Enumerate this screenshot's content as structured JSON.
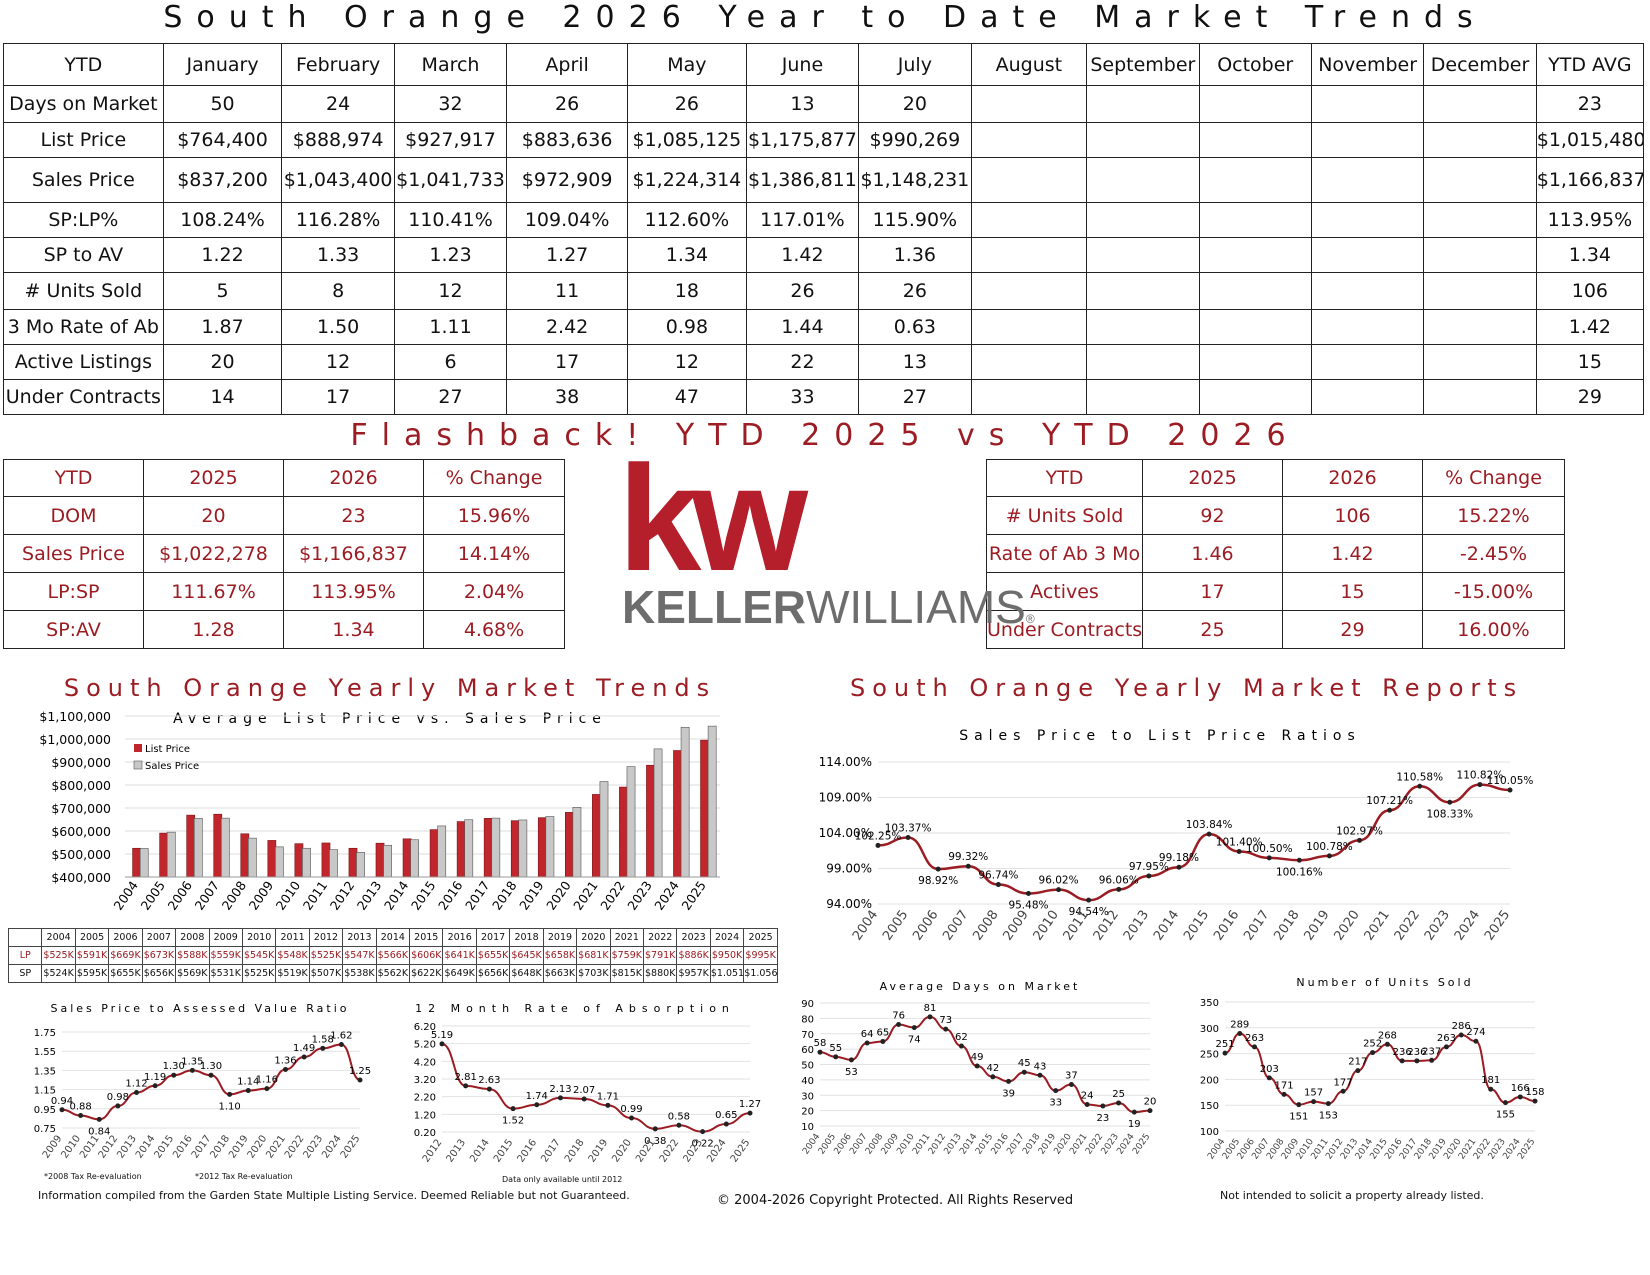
{
  "header": {
    "title": "South Orange 2026 Year to Date Market Trends"
  },
  "ytd_table": {
    "columns": [
      "YTD",
      "January",
      "February",
      "March",
      "April",
      "May",
      "June",
      "July",
      "August",
      "September",
      "October",
      "November",
      "December",
      "YTD AVG"
    ],
    "rows": [
      [
        "Days on Market",
        "50",
        "24",
        "32",
        "26",
        "26",
        "13",
        "20",
        "",
        "",
        "",
        "",
        "",
        "23"
      ],
      [
        "List Price",
        "$764,400",
        "$888,974",
        "$927,917",
        "$883,636",
        "$1,085,125",
        "$1,175,877",
        "$990,269",
        "",
        "",
        "",
        "",
        "",
        "$1,015,480"
      ],
      [
        "Sales Price",
        "$837,200",
        "$1,043,400",
        "$1,041,733",
        "$972,909",
        "$1,224,314",
        "$1,386,811",
        "$1,148,231",
        "",
        "",
        "",
        "",
        "",
        "$1,166,837"
      ],
      [
        "SP:LP%",
        "108.24%",
        "116.28%",
        "110.41%",
        "109.04%",
        "112.60%",
        "117.01%",
        "115.90%",
        "",
        "",
        "",
        "",
        "",
        "113.95%"
      ],
      [
        "SP to AV",
        "1.22",
        "1.33",
        "1.23",
        "1.27",
        "1.34",
        "1.42",
        "1.36",
        "",
        "",
        "",
        "",
        "",
        "1.34"
      ],
      [
        "# Units Sold",
        "5",
        "8",
        "12",
        "11",
        "18",
        "26",
        "26",
        "",
        "",
        "",
        "",
        "",
        "106"
      ],
      [
        "3 Mo Rate of Ab",
        "1.87",
        "1.50",
        "1.11",
        "2.42",
        "0.98",
        "1.44",
        "0.63",
        "",
        "",
        "",
        "",
        "",
        "1.42"
      ],
      [
        "Active Listings",
        "20",
        "12",
        "6",
        "17",
        "12",
        "22",
        "13",
        "",
        "",
        "",
        "",
        "",
        "15"
      ],
      [
        "Under Contracts",
        "14",
        "17",
        "27",
        "38",
        "47",
        "33",
        "27",
        "",
        "",
        "",
        "",
        "",
        "29"
      ]
    ]
  },
  "flashback": {
    "title": "Flashback!  YTD 2025 vs YTD 2026",
    "left": {
      "header": [
        "YTD",
        "2025",
        "2026",
        "% Change"
      ],
      "rows": [
        [
          "DOM",
          "20",
          "23",
          "15.96%"
        ],
        [
          "Sales Price",
          "$1,022,278",
          "$1,166,837",
          "14.14%"
        ],
        [
          "LP:SP",
          "111.67%",
          "113.95%",
          "2.04%"
        ],
        [
          "SP:AV",
          "1.28",
          "1.34",
          "4.68%"
        ]
      ]
    },
    "right": {
      "header": [
        "YTD",
        "2025",
        "2026",
        "% Change"
      ],
      "rows": [
        [
          "# Units Sold",
          "92",
          "106",
          "15.22%"
        ],
        [
          "Rate of Ab 3 Mo",
          "1.46",
          "1.42",
          "-2.45%"
        ],
        [
          "Actives",
          "17",
          "15",
          "-15.00%"
        ],
        [
          "Under Contracts",
          "25",
          "29",
          "16.00%"
        ]
      ]
    }
  },
  "logo": {
    "mark": "kw",
    "name_a": "KELLER",
    "name_b": "WILLIAMS",
    "reg": "®"
  },
  "sections": {
    "trends": "South Orange Yearly Market Trends",
    "reports": "South Orange Yearly Market Reports"
  },
  "colors": {
    "accent": "#9b1c22",
    "list_bar": "#c0262c",
    "sales_bar": "#c8c8c8",
    "line": "#9b1c22"
  },
  "price_table": {
    "years": [
      "2004",
      "2005",
      "2006",
      "2007",
      "2008",
      "2009",
      "2010",
      "2011",
      "2012",
      "2013",
      "2014",
      "2015",
      "2016",
      "2017",
      "2018",
      "2019",
      "2020",
      "2021",
      "2022",
      "2023",
      "2024",
      "2025"
    ],
    "lp_label": "LP",
    "sp_label": "SP",
    "lp": [
      "$525K",
      "$591K",
      "$669K",
      "$673K",
      "$588K",
      "$559K",
      "$545K",
      "$548K",
      "$525K",
      "$547K",
      "$566K",
      "$606K",
      "$641K",
      "$655K",
      "$645K",
      "$658K",
      "$681K",
      "$759K",
      "$791K",
      "$886K",
      "$950K",
      "$995K"
    ],
    "sp": [
      "$524K",
      "$595K",
      "$655K",
      "$656K",
      "$569K",
      "$531K",
      "$525K",
      "$519K",
      "$507K",
      "$538K",
      "$562K",
      "$622K",
      "$649K",
      "$656K",
      "$648K",
      "$663K",
      "$703K",
      "$815K",
      "$880K",
      "$957K",
      "$1.051M",
      "$1.056"
    ]
  },
  "footer": {
    "note1": "*2008 Tax Re-evaluation",
    "note2": "*2012 Tax Re-evaluation",
    "note3": "Data only available until 2012",
    "left": "Information compiled from the Garden State Multiple Listing Service.  Deemed Reliable but not Guaranteed.",
    "center": "© 2004-2026 Copyright Protected.  All Rights Reserved",
    "right": "Not intended to solicit a property already listed."
  },
  "chart_data": [
    {
      "id": "avg-price",
      "type": "bar",
      "title": "Average List Price vs. Sales Price",
      "categories": [
        "2004",
        "2005",
        "2006",
        "2007",
        "2008",
        "2009",
        "2010",
        "2011",
        "2012",
        "2013",
        "2014",
        "2015",
        "2016",
        "2017",
        "2018",
        "2019",
        "2020",
        "2021",
        "2022",
        "2023",
        "2024",
        "2025"
      ],
      "series": [
        {
          "name": "List Price",
          "values": [
            525,
            591,
            669,
            673,
            588,
            559,
            545,
            548,
            525,
            547,
            566,
            606,
            641,
            655,
            645,
            658,
            681,
            759,
            791,
            886,
            950,
            995
          ]
        },
        {
          "name": "Sales Price",
          "values": [
            524,
            595,
            655,
            656,
            569,
            531,
            525,
            519,
            507,
            538,
            562,
            622,
            649,
            656,
            648,
            663,
            703,
            815,
            880,
            957,
            1051,
            1056
          ]
        }
      ],
      "ylim": [
        400000,
        1100000
      ],
      "yticks": [
        "$400,000",
        "$500,000",
        "$600,000",
        "$700,000",
        "$800,000",
        "$900,000",
        "$1,000,000",
        "$1,100,000"
      ],
      "legend": "top-left"
    },
    {
      "id": "sp-lp",
      "type": "line",
      "title": "Sales Price to List Price Ratios",
      "categories": [
        "2004",
        "2005",
        "2006",
        "2007",
        "2008",
        "2009",
        "2010",
        "2011",
        "2012",
        "2013",
        "2014",
        "2015",
        "2016",
        "2017",
        "2018",
        "2019",
        "2020",
        "2021",
        "2022",
        "2023",
        "2024",
        "2025"
      ],
      "values": [
        102.25,
        103.37,
        98.92,
        99.32,
        96.74,
        95.48,
        96.02,
        94.54,
        96.06,
        97.95,
        99.18,
        103.84,
        101.4,
        100.5,
        100.16,
        100.78,
        102.97,
        107.21,
        110.58,
        108.33,
        110.82,
        110.05
      ],
      "labels": [
        "102.25%",
        "103.37%",
        "98.92%",
        "99.32%",
        "96.74%",
        "95.48%",
        "96.02%",
        "94.54%",
        "96.06%",
        "97.95%",
        "99.18%",
        "103.84%",
        "101.40%",
        "100.50%",
        "100.16%",
        "100.78%",
        "102.97%",
        "107.21%",
        "110.58%",
        "108.33%",
        "110.82%",
        "110.05%"
      ],
      "ylim": [
        94,
        114
      ],
      "yticks": [
        "94.00%",
        "99.00%",
        "104.00%",
        "109.00%",
        "114.00%"
      ]
    },
    {
      "id": "sp-av",
      "type": "line",
      "title": "Sales Price to Assessed Value Ratio",
      "categories": [
        "2009",
        "2010",
        "2011",
        "2012",
        "2013",
        "2014",
        "2015",
        "2016",
        "2017",
        "2018",
        "2019",
        "2020",
        "2021",
        "2022",
        "2023",
        "2024",
        "2025"
      ],
      "values": [
        0.94,
        0.88,
        0.84,
        0.98,
        1.12,
        1.19,
        1.3,
        1.35,
        1.3,
        1.1,
        1.14,
        1.16,
        1.36,
        1.49,
        1.58,
        1.62,
        1.25
      ],
      "labels": [
        "0.94",
        "0.88",
        "0.84",
        "0.98",
        "1.12",
        "1.19",
        "1.30",
        "1.35",
        "1.30",
        "1.10",
        "1.14",
        "1.16",
        "1.36",
        "1.49",
        "1.58",
        "1.62",
        "1.25"
      ],
      "ylim": [
        0.75,
        1.75
      ],
      "yticks": [
        "0.75",
        "0.95",
        "1.15",
        "1.35",
        "1.55",
        "1.75"
      ]
    },
    {
      "id": "absorption",
      "type": "line",
      "title": "12 Month Rate of Absorption",
      "categories": [
        "2012",
        "2013",
        "2014",
        "2015",
        "2016",
        "2017",
        "2018",
        "2019",
        "2020",
        "2021",
        "2022",
        "2023",
        "2024",
        "2025"
      ],
      "values": [
        5.19,
        2.81,
        2.63,
        1.52,
        1.74,
        2.13,
        2.07,
        1.71,
        0.99,
        0.38,
        0.58,
        0.22,
        0.65,
        1.27
      ],
      "labels": [
        "5.19",
        "2.81",
        "2.63",
        "1.52",
        "1.74",
        "2.13",
        "2.07",
        "1.71",
        "0.99",
        "0.38",
        "0.58",
        "0.22",
        "0.65",
        "1.27"
      ],
      "ylim": [
        0.2,
        6.2
      ],
      "yticks": [
        "0.20",
        "1.20",
        "2.20",
        "3.20",
        "4.20",
        "5.20",
        "6.20"
      ]
    },
    {
      "id": "dom",
      "type": "line",
      "title": "Average Days on Market",
      "categories": [
        "2004",
        "2005",
        "2006",
        "2007",
        "2008",
        "2009",
        "2010",
        "2011",
        "2012",
        "2013",
        "2014",
        "2015",
        "2016",
        "2017",
        "2018",
        "2019",
        "2020",
        "2021",
        "2022",
        "2023",
        "2024",
        "2025"
      ],
      "values": [
        58,
        55,
        53,
        64,
        65,
        76,
        74,
        81,
        73,
        62,
        49,
        42,
        39,
        45,
        43,
        33,
        37,
        24,
        23,
        25,
        19,
        20
      ],
      "labels": [
        "58",
        "55",
        "53",
        "64",
        "65",
        "76",
        "74",
        "81",
        "73",
        "62",
        "49",
        "42",
        "39",
        "45",
        "43",
        "33",
        "37",
        "24",
        "23",
        "25",
        "19",
        "20"
      ],
      "ylim": [
        10,
        90
      ],
      "yticks": [
        "10",
        "20",
        "30",
        "40",
        "50",
        "60",
        "70",
        "80",
        "90"
      ]
    },
    {
      "id": "units",
      "type": "line",
      "title": "Number of Units Sold",
      "categories": [
        "2004",
        "2005",
        "2006",
        "2007",
        "2008",
        "2009",
        "2010",
        "2011",
        "2012",
        "2013",
        "2014",
        "2015",
        "2016",
        "2017",
        "2018",
        "2019",
        "2020",
        "2021",
        "2022",
        "2023",
        "2024",
        "2025"
      ],
      "values": [
        251,
        289,
        263,
        203,
        171,
        151,
        157,
        153,
        177,
        217,
        252,
        268,
        236,
        236,
        237,
        263,
        286,
        274,
        181,
        155,
        166,
        158
      ],
      "labels": [
        "251",
        "289",
        "263",
        "203",
        "171",
        "151",
        "157",
        "153",
        "177",
        "217",
        "252",
        "268",
        "236",
        "236",
        "237",
        "263",
        "286",
        "274",
        "181",
        "155",
        "166",
        "158"
      ],
      "ylim": [
        100,
        350
      ],
      "yticks": [
        "100",
        "150",
        "200",
        "250",
        "300",
        "350"
      ]
    }
  ]
}
